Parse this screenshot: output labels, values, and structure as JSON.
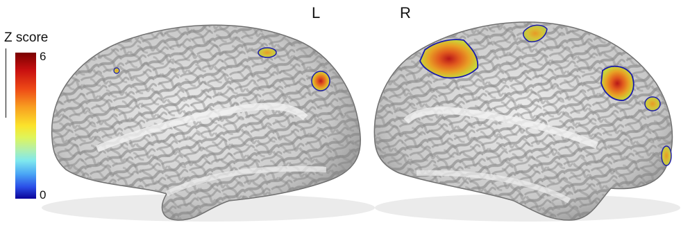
{
  "hemispheres": {
    "left_label": "L",
    "right_label": "R"
  },
  "colorbar": {
    "title": "Z score",
    "max_label": "6",
    "min_label": "0",
    "max_value": 6,
    "min_value": 0
  },
  "colors": {
    "cortex_light": "#d9d9d9",
    "cortex_dark": "#8c8c8c",
    "cluster_outline": "#1a1aa8",
    "cluster_peak": "#b81818",
    "cluster_mid": "#e8a025",
    "cluster_low": "#c9d63a"
  }
}
